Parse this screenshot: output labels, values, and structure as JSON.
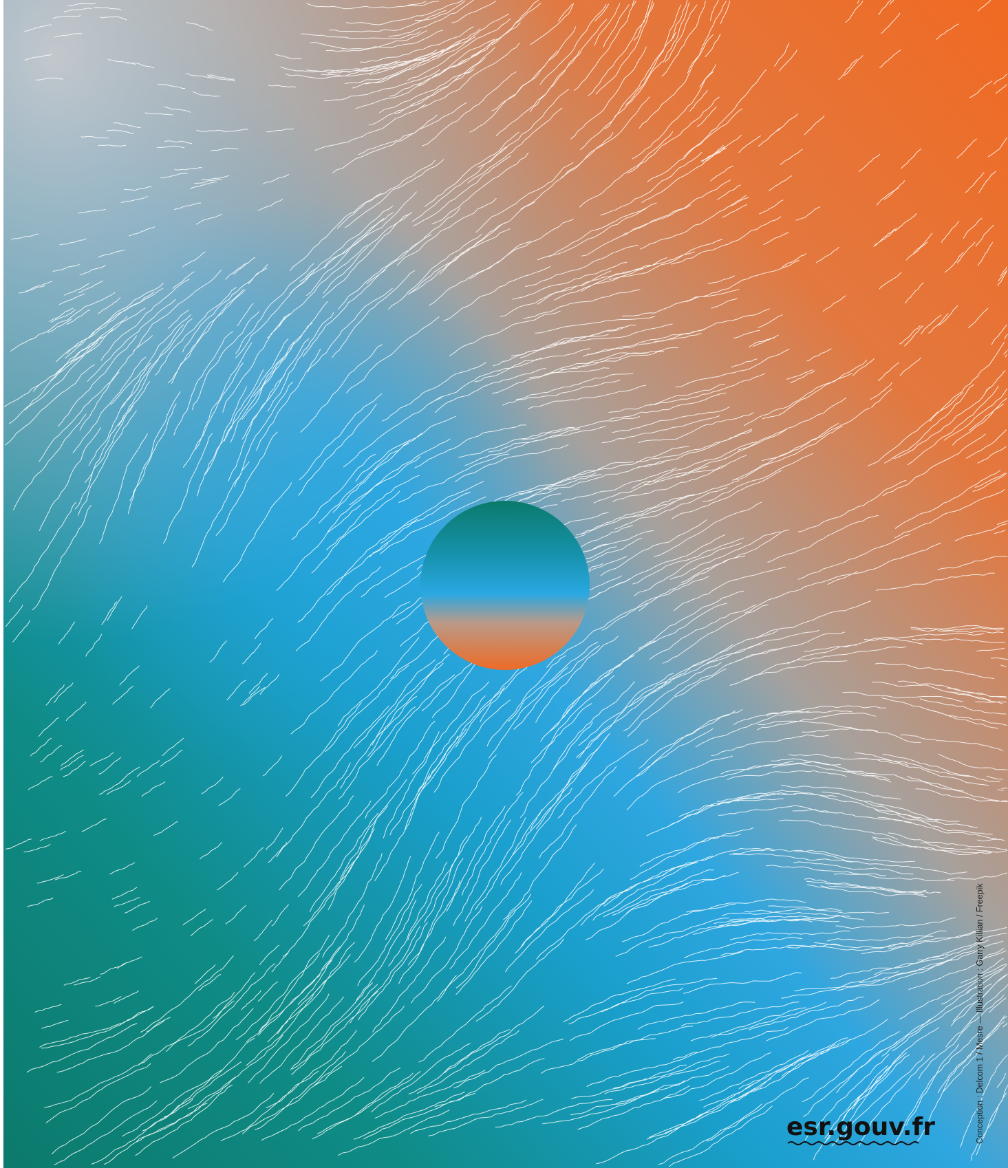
{
  "logo": {
    "text": "esr.gouv.fr"
  },
  "credits": "Conception : Delcom 1 / Mesre — Illustration : Garry Killian / Freepik"
}
